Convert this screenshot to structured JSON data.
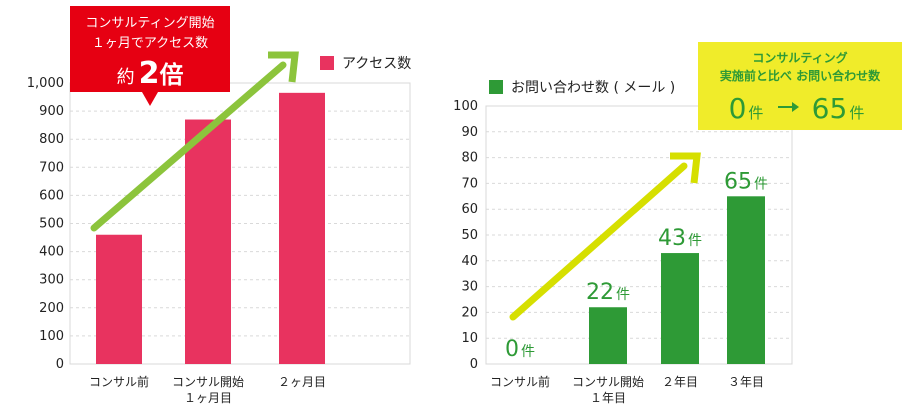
{
  "chart_data": [
    {
      "type": "bar",
      "categories": [
        "コンサル前",
        "コンサル開始\n１ヶ月目",
        "２ヶ月目"
      ],
      "series": [
        {
          "name": "アクセス数",
          "values": [
            460,
            870,
            965
          ]
        }
      ],
      "ylim": [
        0,
        1000
      ],
      "yticks": [
        "0",
        "100",
        "200",
        "300",
        "400",
        "500",
        "600",
        "700",
        "800",
        "900",
        "1,000"
      ],
      "legend": "top-right",
      "grid": true,
      "colors": {
        "bar": "#e8335f",
        "arrow": "#8cc43c",
        "callout": "#e60012"
      },
      "callout": {
        "line1": "コンサルティング開始",
        "line2": "１ヶ月でアクセス数",
        "prefix": "約",
        "big": "2",
        "suffix": "倍"
      }
    },
    {
      "type": "bar",
      "categories": [
        "コンサル前",
        "コンサル開始\n１年目",
        "２年目",
        "３年目"
      ],
      "series": [
        {
          "name": "お問い合わせ数 ( メール )",
          "values": [
            0,
            22,
            43,
            65
          ]
        }
      ],
      "data_labels": [
        {
          "num": "0",
          "unit": "件"
        },
        {
          "num": "22",
          "unit": "件"
        },
        {
          "num": "43",
          "unit": "件"
        },
        {
          "num": "65",
          "unit": "件"
        }
      ],
      "ylim": [
        0,
        100
      ],
      "yticks": [
        "0",
        "10",
        "20",
        "30",
        "40",
        "50",
        "60",
        "70",
        "80",
        "90",
        "100"
      ],
      "legend": "top-left",
      "grid": true,
      "colors": {
        "bar": "#2e9a36",
        "arrow": "#d6df00",
        "callout": "#f0ec2a",
        "callout_text": "#2e9a36"
      },
      "callout": {
        "line1": "コンサルティング",
        "line2": "実施前と比べ お問い合わせ数",
        "from_num": "0",
        "from_unit": "件",
        "to_num": "65",
        "to_unit": "件"
      }
    }
  ]
}
